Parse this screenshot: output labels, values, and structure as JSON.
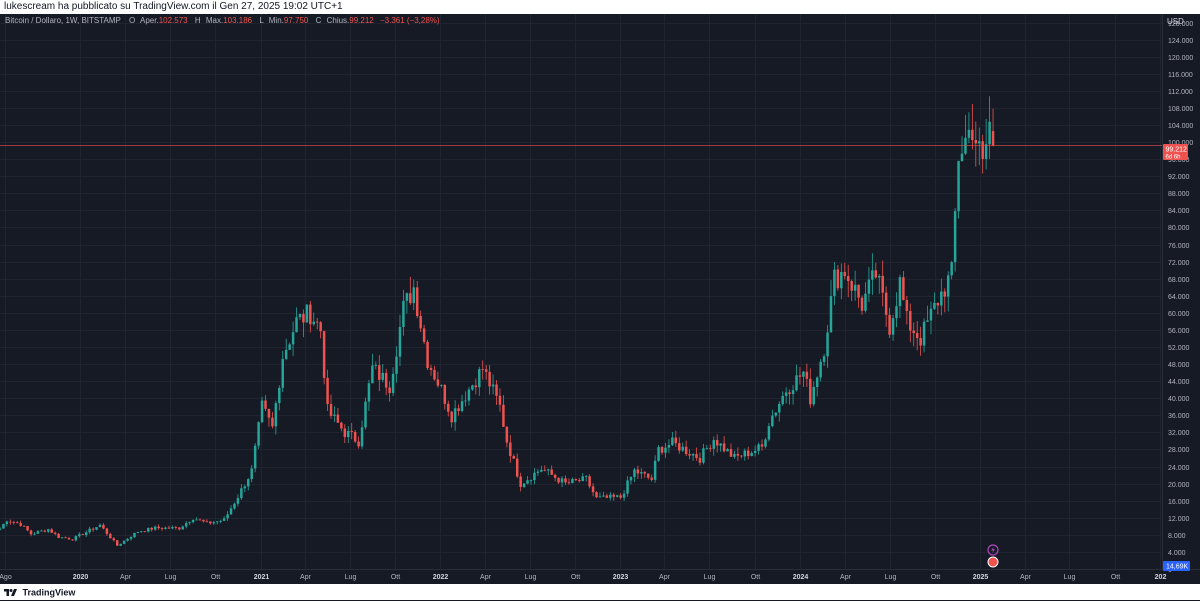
{
  "publish_header": {
    "text": "lukescream ha pubblicato su TradingView.com il Gen 27, 2025 19:02 UTC+1"
  },
  "legend": {
    "symbol": "Bitcoin / Dollaro, 1W, BITSTAMP",
    "o_key": "O",
    "o_label": "Aper.",
    "o_value": "102.573",
    "h_key": "H",
    "h_label": "Max.",
    "h_value": "103.186",
    "l_key": "L",
    "l_label": "Min.",
    "l_value": "97.750",
    "c_key": "C",
    "c_label": "Chius.",
    "c_value": "99.212",
    "change": "−3.361 (−3,28%)"
  },
  "price_scale": {
    "currency": "USD",
    "last_price_label": "99.212",
    "countdown_label": "6d 6h",
    "volume_label": "14,69K"
  },
  "footer": {
    "brand": "TradingView"
  },
  "colors": {
    "background": "#161a25",
    "grid": "#1f2430",
    "up": "#26a69a",
    "down": "#ef5350",
    "text": "#b2b5be",
    "price_line": "#ef5350",
    "volume_badge": "#2962ff",
    "event_icon": "#ab47bc"
  },
  "chart_data": {
    "type": "candlestick",
    "timeframe": "1W",
    "x_unit": "time",
    "x_range": [
      "2019-07-22",
      "2026-01-05"
    ],
    "ylim": [
      0,
      130000
    ],
    "y_ticks": [
      0,
      4000,
      8000,
      12000,
      16000,
      20000,
      24000,
      28000,
      32000,
      36000,
      40000,
      44000,
      48000,
      52000,
      56000,
      60000,
      64000,
      68000,
      72000,
      76000,
      80000,
      84000,
      88000,
      92000,
      96000,
      100000,
      104000,
      108000,
      112000,
      116000,
      120000,
      124000,
      128000
    ],
    "y_tick_labels": [
      "0",
      "4.000",
      "8.000",
      "12.000",
      "16.000",
      "20.000",
      "24.000",
      "28.000",
      "32.000",
      "36.000",
      "40.000",
      "44.000",
      "48.000",
      "52.000",
      "56.000",
      "60.000",
      "64.000",
      "68.000",
      "72.000",
      "76.000",
      "80.000",
      "84.000",
      "88.000",
      "92.000",
      "96.000",
      "100.000",
      "104.000",
      "108.000",
      "112.000",
      "116.000",
      "120.000",
      "124.000",
      "128.000"
    ],
    "x_ticks": [
      {
        "label": "Ago",
        "date": "2019-08-01",
        "bold": false
      },
      {
        "label": "2020",
        "date": "2020-01-01",
        "bold": true
      },
      {
        "label": "Apr",
        "date": "2020-04-01",
        "bold": false
      },
      {
        "label": "Lug",
        "date": "2020-07-01",
        "bold": false
      },
      {
        "label": "Ott",
        "date": "2020-10-01",
        "bold": false
      },
      {
        "label": "2021",
        "date": "2021-01-01",
        "bold": true
      },
      {
        "label": "Apr",
        "date": "2021-04-01",
        "bold": false
      },
      {
        "label": "Lug",
        "date": "2021-07-01",
        "bold": false
      },
      {
        "label": "Ott",
        "date": "2021-10-01",
        "bold": false
      },
      {
        "label": "2022",
        "date": "2022-01-01",
        "bold": true
      },
      {
        "label": "Apr",
        "date": "2022-04-01",
        "bold": false
      },
      {
        "label": "Lug",
        "date": "2022-07-01",
        "bold": false
      },
      {
        "label": "Ott",
        "date": "2022-10-01",
        "bold": false
      },
      {
        "label": "2023",
        "date": "2023-01-01",
        "bold": true
      },
      {
        "label": "Apr",
        "date": "2023-04-01",
        "bold": false
      },
      {
        "label": "Lug",
        "date": "2023-07-01",
        "bold": false
      },
      {
        "label": "Ott",
        "date": "2023-10-01",
        "bold": false
      },
      {
        "label": "2024",
        "date": "2024-01-01",
        "bold": true
      },
      {
        "label": "Apr",
        "date": "2024-04-01",
        "bold": false
      },
      {
        "label": "Lug",
        "date": "2024-07-01",
        "bold": false
      },
      {
        "label": "Ott",
        "date": "2024-10-01",
        "bold": false
      },
      {
        "label": "2025",
        "date": "2025-01-01",
        "bold": true
      },
      {
        "label": "Apr",
        "date": "2025-04-01",
        "bold": false
      },
      {
        "label": "Lug",
        "date": "2025-07-01",
        "bold": false
      },
      {
        "label": "Ott",
        "date": "2025-10-01",
        "bold": false
      },
      {
        "label": "202",
        "date": "2026-01-01",
        "bold": true
      }
    ],
    "last_close": 99212,
    "grid": true,
    "price_path": [
      [
        "2019-07-22",
        9500
      ],
      [
        "2019-08-05",
        11500
      ],
      [
        "2019-09-02",
        10500
      ],
      [
        "2019-09-23",
        8200
      ],
      [
        "2019-10-28",
        9300
      ],
      [
        "2019-11-18",
        7500
      ],
      [
        "2019-12-16",
        7000
      ],
      [
        "2020-02-10",
        10300
      ],
      [
        "2020-03-16",
        5500
      ],
      [
        "2020-04-27",
        8800
      ],
      [
        "2020-06-01",
        9600
      ],
      [
        "2020-07-20",
        9600
      ],
      [
        "2020-08-17",
        12000
      ],
      [
        "2020-09-14",
        10700
      ],
      [
        "2020-10-19",
        11500
      ],
      [
        "2020-11-16",
        17000
      ],
      [
        "2020-12-14",
        23000
      ],
      [
        "2021-01-04",
        38000
      ],
      [
        "2021-01-25",
        33000
      ],
      [
        "2021-02-15",
        50000
      ],
      [
        "2021-03-15",
        58000
      ],
      [
        "2021-04-12",
        60000
      ],
      [
        "2021-05-03",
        56000
      ],
      [
        "2021-05-17",
        37000
      ],
      [
        "2021-06-21",
        32000
      ],
      [
        "2021-07-19",
        30000
      ],
      [
        "2021-08-16",
        47000
      ],
      [
        "2021-09-20",
        43000
      ],
      [
        "2021-10-18",
        61000
      ],
      [
        "2021-11-08",
        66000
      ],
      [
        "2021-12-06",
        49000
      ],
      [
        "2022-01-03",
        42000
      ],
      [
        "2022-01-24",
        36000
      ],
      [
        "2022-03-28",
        47000
      ],
      [
        "2022-05-02",
        38000
      ],
      [
        "2022-05-16",
        30000
      ],
      [
        "2022-06-13",
        20000
      ],
      [
        "2022-07-25",
        23500
      ],
      [
        "2022-09-12",
        20000
      ],
      [
        "2022-10-24",
        21000
      ],
      [
        "2022-11-14",
        16500
      ],
      [
        "2023-01-02",
        16800
      ],
      [
        "2023-01-30",
        23000
      ],
      [
        "2023-03-06",
        21000
      ],
      [
        "2023-03-20",
        28000
      ],
      [
        "2023-04-17",
        29500
      ],
      [
        "2023-06-12",
        26000
      ],
      [
        "2023-07-10",
        30500
      ],
      [
        "2023-08-21",
        26000
      ],
      [
        "2023-10-16",
        28500
      ],
      [
        "2023-10-30",
        34500
      ],
      [
        "2023-12-04",
        42000
      ],
      [
        "2024-01-08",
        46000
      ],
      [
        "2024-01-22",
        40000
      ],
      [
        "2024-02-19",
        52000
      ],
      [
        "2024-03-11",
        68000
      ],
      [
        "2024-04-01",
        70000
      ],
      [
        "2024-05-06",
        62000
      ],
      [
        "2024-06-03",
        69000
      ],
      [
        "2024-07-01",
        57000
      ],
      [
        "2024-07-22",
        67000
      ],
      [
        "2024-08-05",
        58000
      ],
      [
        "2024-09-02",
        54000
      ],
      [
        "2024-10-07",
        63000
      ],
      [
        "2024-11-04",
        69000
      ],
      [
        "2024-11-18",
        97000
      ],
      [
        "2024-12-16",
        104000
      ],
      [
        "2025-01-06",
        94000
      ],
      [
        "2025-01-20",
        104500
      ],
      [
        "2025-01-27",
        99212
      ]
    ]
  }
}
